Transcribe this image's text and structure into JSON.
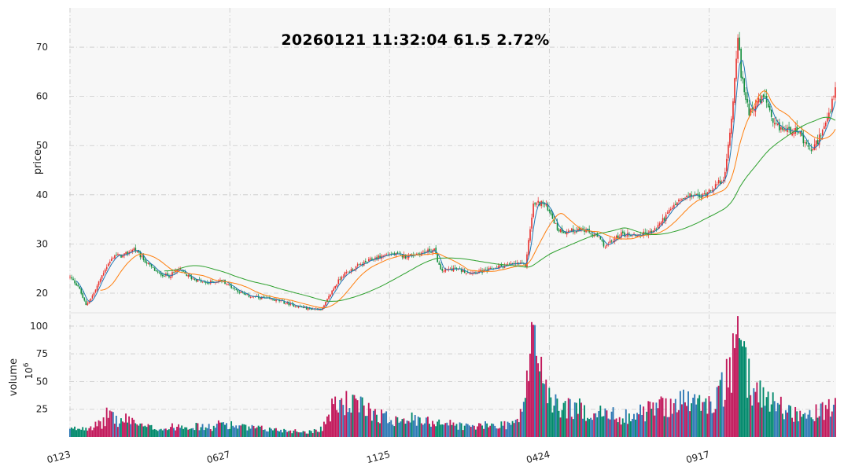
{
  "chart_data": {
    "type": "candlestick",
    "title": "20260121 11:32:04   61.5 2.72%",
    "price_panel": {
      "ylabel": "price",
      "ylim": [
        16,
        78
      ],
      "yticks": [
        20,
        30,
        40,
        50,
        60,
        70
      ]
    },
    "volume_panel": {
      "ylabel": "volume",
      "unit_label": "10",
      "unit_exponent": "6",
      "ylim": [
        0,
        112
      ],
      "yticks": [
        25,
        50,
        75,
        100
      ]
    },
    "x_tick_labels": [
      "0123",
      "0627",
      "1125",
      "0424",
      "0917"
    ],
    "x_tick_index": [
      0,
      100,
      200,
      300,
      400
    ],
    "n_points": 480,
    "grid": true,
    "price_anchors": [
      [
        0,
        23.2
      ],
      [
        5,
        21.5
      ],
      [
        10,
        17.5
      ],
      [
        15,
        20
      ],
      [
        22,
        25
      ],
      [
        28,
        27.8
      ],
      [
        33,
        27.5
      ],
      [
        40,
        29
      ],
      [
        47,
        26.5
      ],
      [
        55,
        24
      ],
      [
        62,
        23.5
      ],
      [
        68,
        24.8
      ],
      [
        75,
        23.2
      ],
      [
        85,
        22
      ],
      [
        95,
        22.6
      ],
      [
        100,
        21.5
      ],
      [
        110,
        19.5
      ],
      [
        120,
        19
      ],
      [
        130,
        18.5
      ],
      [
        140,
        17.5
      ],
      [
        150,
        16.8
      ],
      [
        158,
        16.8
      ],
      [
        165,
        21
      ],
      [
        170,
        23.5
      ],
      [
        180,
        25.5
      ],
      [
        190,
        27
      ],
      [
        200,
        28
      ],
      [
        210,
        27.5
      ],
      [
        220,
        28.2
      ],
      [
        228,
        28.8
      ],
      [
        232,
        24.5
      ],
      [
        240,
        25
      ],
      [
        250,
        24.2
      ],
      [
        260,
        24.5
      ],
      [
        270,
        25.5
      ],
      [
        280,
        26
      ],
      [
        285,
        25.6
      ],
      [
        290,
        38
      ],
      [
        295,
        38.5
      ],
      [
        300,
        37
      ],
      [
        305,
        33
      ],
      [
        310,
        32.5
      ],
      [
        320,
        33
      ],
      [
        330,
        31.5
      ],
      [
        335,
        29.5
      ],
      [
        345,
        32
      ],
      [
        355,
        31.8
      ],
      [
        365,
        32.5
      ],
      [
        370,
        34.5
      ],
      [
        380,
        38.5
      ],
      [
        390,
        40
      ],
      [
        395,
        39.5
      ],
      [
        400,
        41
      ],
      [
        405,
        42
      ],
      [
        410,
        44
      ],
      [
        412,
        50
      ],
      [
        415,
        59
      ],
      [
        418,
        73
      ],
      [
        420,
        64
      ],
      [
        425,
        57
      ],
      [
        430,
        58.5
      ],
      [
        435,
        60
      ],
      [
        440,
        54
      ],
      [
        450,
        53
      ],
      [
        455,
        53.5
      ],
      [
        460,
        50
      ],
      [
        465,
        49
      ],
      [
        470,
        52.5
      ],
      [
        475,
        56
      ],
      [
        478,
        60
      ],
      [
        479,
        61.5
      ]
    ],
    "volume_anchors": [
      [
        0,
        7
      ],
      [
        10,
        10
      ],
      [
        20,
        12
      ],
      [
        25,
        26
      ],
      [
        30,
        14
      ],
      [
        38,
        18
      ],
      [
        45,
        10
      ],
      [
        60,
        8
      ],
      [
        70,
        12
      ],
      [
        80,
        10
      ],
      [
        90,
        9
      ],
      [
        95,
        14
      ],
      [
        100,
        12
      ],
      [
        110,
        9
      ],
      [
        120,
        8
      ],
      [
        130,
        7
      ],
      [
        140,
        6
      ],
      [
        150,
        5
      ],
      [
        158,
        9
      ],
      [
        165,
        30
      ],
      [
        172,
        34
      ],
      [
        180,
        30
      ],
      [
        190,
        25
      ],
      [
        200,
        17
      ],
      [
        210,
        20
      ],
      [
        220,
        14
      ],
      [
        230,
        16
      ],
      [
        240,
        12
      ],
      [
        250,
        10
      ],
      [
        260,
        11
      ],
      [
        270,
        12
      ],
      [
        280,
        14
      ],
      [
        285,
        40
      ],
      [
        288,
        75
      ],
      [
        290,
        104
      ],
      [
        292,
        88
      ],
      [
        295,
        72
      ],
      [
        300,
        35
      ],
      [
        305,
        30
      ],
      [
        315,
        28
      ],
      [
        325,
        25
      ],
      [
        335,
        22
      ],
      [
        345,
        20
      ],
      [
        355,
        22
      ],
      [
        365,
        28
      ],
      [
        375,
        32
      ],
      [
        385,
        35
      ],
      [
        395,
        33
      ],
      [
        400,
        30
      ],
      [
        410,
        50
      ],
      [
        415,
        72
      ],
      [
        418,
        95
      ],
      [
        420,
        78
      ],
      [
        425,
        55
      ],
      [
        430,
        45
      ],
      [
        440,
        35
      ],
      [
        450,
        25
      ],
      [
        460,
        20
      ],
      [
        470,
        24
      ],
      [
        479,
        29
      ]
    ]
  }
}
